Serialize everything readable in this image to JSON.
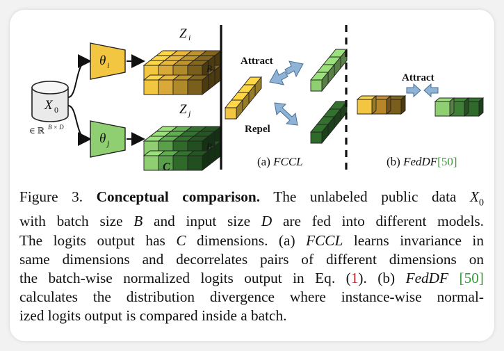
{
  "figure": {
    "input_label": "X",
    "input_sub": "0",
    "input_dim": "∈ ℝ",
    "input_dim_sup": "B × D",
    "model_i": "θ",
    "model_i_sub": "i",
    "model_j": "θ",
    "model_j_sub": "j",
    "z_i": "Z",
    "z_i_sub": "i",
    "z_j": "Z",
    "z_j_sub": "j",
    "b_label_top": "B",
    "b_label_bottom": "B",
    "c_label": "C",
    "attract_a": "Attract",
    "repel": "Repel",
    "sub_a_prefix": "(a) ",
    "sub_a_name": "FCCL",
    "attract_b": "Attract",
    "sub_b_prefix": "(b) ",
    "sub_b_name": "FedDF",
    "sub_b_cite": "[50]"
  },
  "colors": {
    "yellow": "#f2c640",
    "dark_green": "#2f6a2b",
    "light_green": "#8fcf72",
    "arrow_blue": "#8fb3d6",
    "citation_green": "#3a9a3a",
    "equation_red": "#c0242a"
  },
  "caption": {
    "lines": [
      [
        "Figure 3. ",
        "Conceptual comparison.",
        " The unlabeled public data ",
        "X",
        "0"
      ],
      [
        "with batch size ",
        "B",
        " and input size ",
        "D",
        " are fed into different models."
      ],
      [
        "The logits output has ",
        "C",
        " dimensions. (a) ",
        "FCCL",
        " learns invariance in"
      ],
      [
        "same dimensions and decorrelates pairs of different dimensions on"
      ],
      [
        "the batch-wise normalized logits output in Eq. (",
        "1",
        "). (b) ",
        "FedDF",
        " ",
        "[50]"
      ],
      [
        "calculates the distribution divergence where instance-wise normal-"
      ],
      [
        "ized logits output is compared inside a batch."
      ]
    ]
  }
}
